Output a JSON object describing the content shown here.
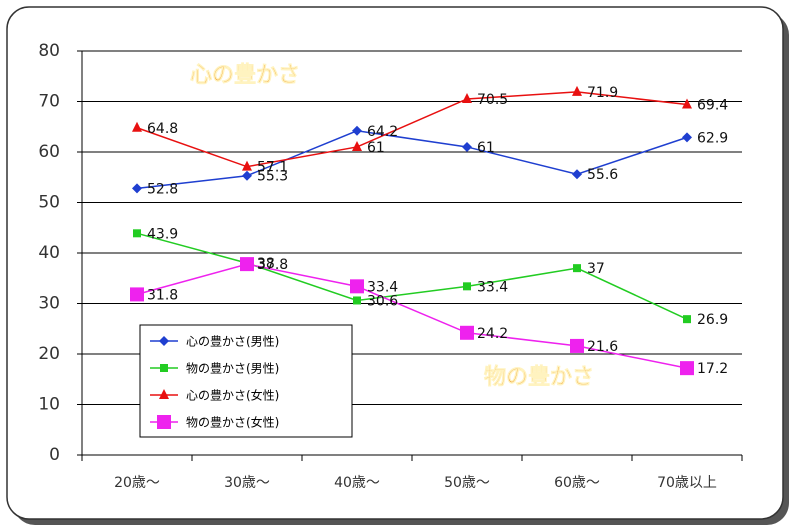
{
  "chart_data": {
    "type": "line",
    "annotations": [
      "心の豊かさ",
      "物の豊かさ"
    ],
    "categories": [
      "20歳～",
      "30歳～",
      "40歳～",
      "50歳～",
      "60歳～",
      "70歳以上"
    ],
    "series": [
      {
        "name": "心の豊かさ(男性)",
        "color": "#1f3fd0",
        "marker": "diamond",
        "values": [
          52.8,
          55.3,
          64.2,
          61,
          55.6,
          62.9
        ]
      },
      {
        "name": "物の豊かさ(男性)",
        "color": "#22cc22",
        "marker": "square",
        "values": [
          43.9,
          38,
          30.6,
          33.4,
          37,
          26.9
        ]
      },
      {
        "name": "心の豊かさ(女性)",
        "color": "#e81010",
        "marker": "triangle",
        "values": [
          64.8,
          57.1,
          61,
          70.5,
          71.9,
          69.4
        ]
      },
      {
        "name": "物の豊かさ(女性)",
        "color": "#ee22ee",
        "marker": "big-square",
        "values": [
          31.8,
          37.8,
          33.4,
          24.2,
          21.6,
          17.2
        ]
      }
    ],
    "ylim": [
      0,
      80
    ],
    "yticks": [
      0,
      10,
      20,
      30,
      40,
      50,
      60,
      70,
      80
    ],
    "grid": true
  }
}
